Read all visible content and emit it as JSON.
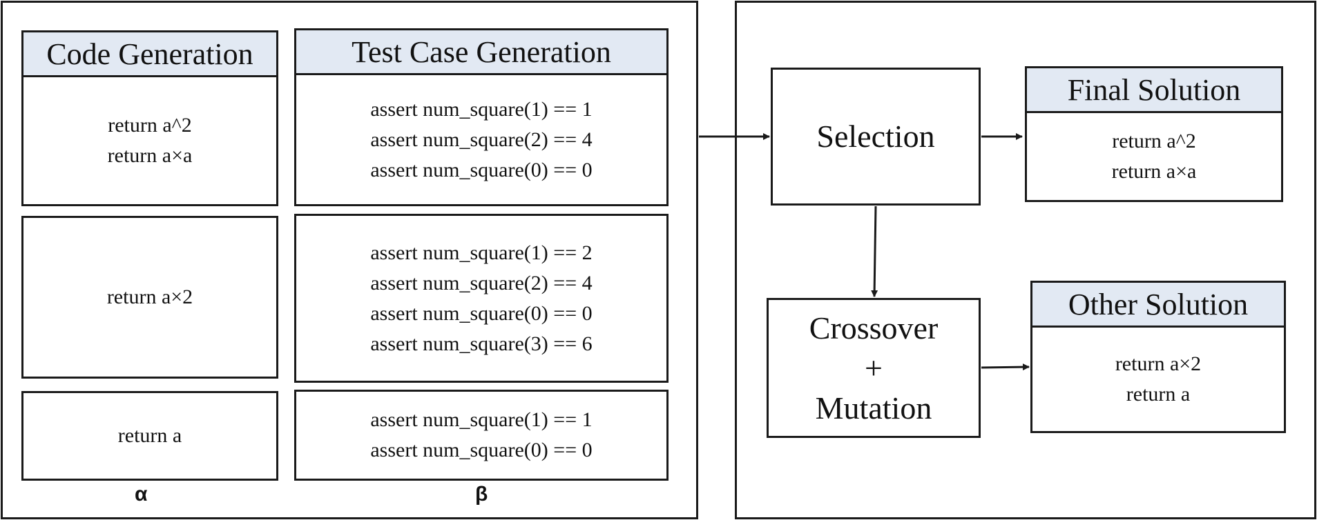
{
  "left_panel": {
    "code_generation": {
      "title": "Code Generation",
      "groups": [
        [
          "return a^2",
          "return a×a"
        ],
        [
          "return a×2"
        ],
        [
          "return a"
        ]
      ]
    },
    "test_case_generation": {
      "title": "Test Case Generation",
      "groups": [
        [
          "assert num_square(1) == 1",
          "assert num_square(2) == 4",
          "assert num_square(0) == 0"
        ],
        [
          "assert num_square(1) == 2",
          "assert num_square(2) == 4",
          "assert num_square(0) == 0",
          "assert num_square(3) == 6"
        ],
        [
          "assert num_square(1) == 1",
          "assert num_square(0) == 0"
        ]
      ]
    },
    "alpha_label": "α",
    "beta_label": "β"
  },
  "right_panel": {
    "selection_label": "Selection",
    "crossover_label": "Crossover",
    "plus_label": "+",
    "mutation_label": "Mutation",
    "final_solution": {
      "title": "Final Solution",
      "lines": [
        "return a^2",
        "return a×a"
      ]
    },
    "other_solution": {
      "title": "Other Solution",
      "lines": [
        "return a×2",
        "return a"
      ]
    }
  }
}
